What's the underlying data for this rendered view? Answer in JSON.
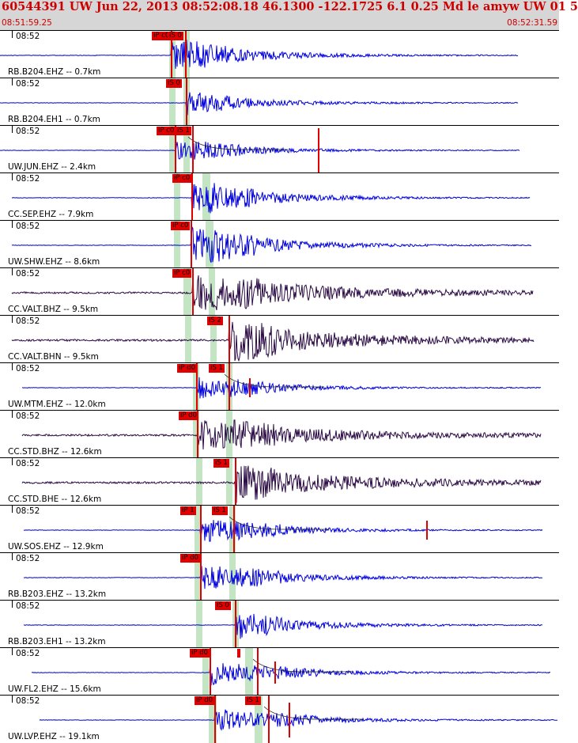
{
  "header": {
    "title": "60544391 UW Jun 22, 2013 08:52:08.18   46.1300 -122.1725  6.1 0.25 Md le amyw UW 01   5",
    "time_start": "08:51:59.25",
    "time_end": "08:52:31.59"
  },
  "colors": {
    "header_bg": "#d6d6d6",
    "header_text": "#cc0000",
    "trace_blue": "#0000dd",
    "trace_dark": "#2a0a44",
    "pick_red": "#e00000",
    "band_green": "#b8e0b8"
  },
  "panels": [
    {
      "time": "08:52",
      "label": "RB.B204.EHZ -- 0.7km",
      "picks": [
        "iP c0",
        "iS 0"
      ]
    },
    {
      "time": "08:52",
      "label": "RB.B204.EH1 -- 0.7km",
      "picks": [
        "iS 0"
      ]
    },
    {
      "time": "08:52",
      "label": "UW.JUN.EHZ -- 2.4km",
      "picks": [
        "iP c0",
        "iS 1"
      ]
    },
    {
      "time": "08:52",
      "label": "CC.SEP.EHZ -- 7.9km",
      "picks": [
        "iP c0"
      ]
    },
    {
      "time": "08:52",
      "label": "UW.SHW.EHZ -- 8.6km",
      "picks": [
        "iP c0"
      ]
    },
    {
      "time": "08:52",
      "label": "CC.VALT.BHZ -- 9.5km",
      "picks": [
        "iP c0"
      ]
    },
    {
      "time": "08:52",
      "label": "CC.VALT.BHN -- 9.5km",
      "picks": [
        "iS 2"
      ]
    },
    {
      "time": "08:52",
      "label": "UW.MTM.EHZ -- 12.0km",
      "picks": [
        "iP d0",
        "iS 1"
      ]
    },
    {
      "time": "08:52",
      "label": "CC.STD.BHZ -- 12.6km",
      "picks": [
        "iP d0"
      ]
    },
    {
      "time": "08:52",
      "label": "CC.STD.BHE -- 12.6km",
      "picks": [
        "iS 1"
      ]
    },
    {
      "time": "08:52",
      "label": "UW.SOS.EHZ -- 12.9km",
      "picks": [
        "iP 1",
        "iS 1"
      ]
    },
    {
      "time": "08:52",
      "label": "RB.B203.EHZ -- 13.2km",
      "picks": [
        "iP d0"
      ]
    },
    {
      "time": "08:52",
      "label": "RB.B203.EH1 -- 13.2km",
      "picks": [
        "iS 0"
      ]
    },
    {
      "time": "08:52",
      "label": "UW.FL2.EHZ -- 15.6km",
      "picks": [
        "iP d0"
      ]
    },
    {
      "time": "08:52",
      "label": "UW.LVP.EHZ -- 19.1km",
      "picks": [
        "iP d0",
        "iS 1"
      ]
    }
  ]
}
